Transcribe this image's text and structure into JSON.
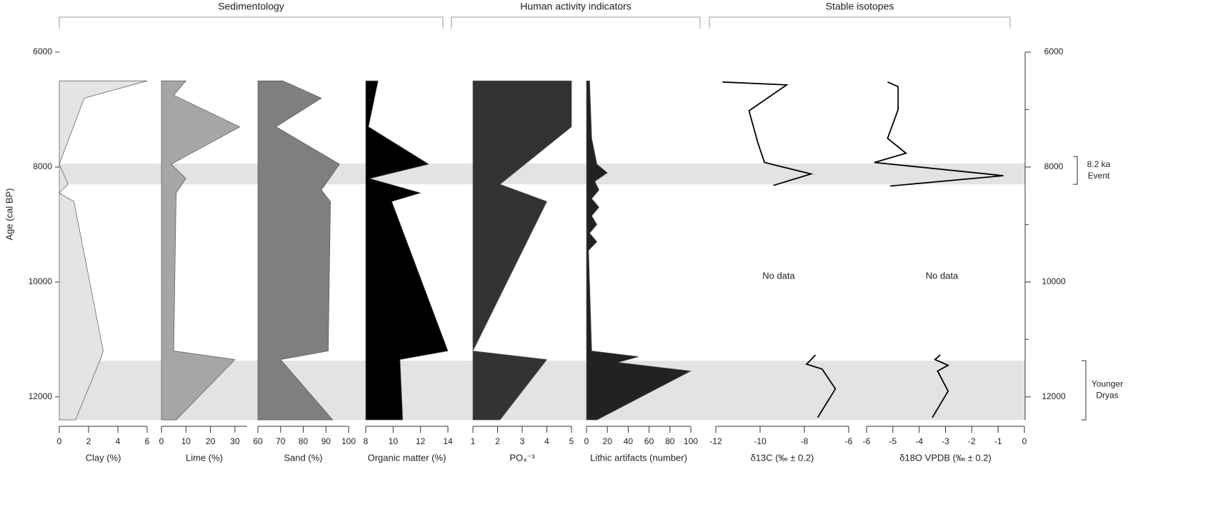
{
  "groups": [
    "Sedimentology",
    "Human activity indicators",
    "Stable isotopes"
  ],
  "age_axis": {
    "label": "Age (cal BP)",
    "ylim": [
      6000,
      12400
    ],
    "yticks": [
      6000,
      8000,
      10000,
      12000
    ],
    "minor": [
      7000,
      9000,
      11000
    ]
  },
  "bands": [
    {
      "lines": [
        "8.2 ka",
        "Event"
      ],
      "ylim": [
        7940,
        8300
      ]
    },
    {
      "lines": [
        "Younger",
        "Dryas"
      ],
      "ylim": [
        11370,
        12400
      ]
    }
  ],
  "chart_data": [
    {
      "type": "area",
      "xlabel": "Clay (%)",
      "xlim": [
        0,
        6
      ],
      "xticks": [
        0,
        2,
        4,
        6
      ],
      "color": "#e4e4e4",
      "y": [
        6500,
        6800,
        7950,
        8300,
        8450,
        8600,
        11200,
        11350,
        12400
      ],
      "values": [
        6,
        1.7,
        0,
        0.6,
        0,
        1.0,
        3.0,
        2.8,
        1.1
      ]
    },
    {
      "type": "area",
      "xlabel": "Lime (%)",
      "xlim": [
        0,
        35
      ],
      "xticks": [
        0,
        10,
        20,
        30
      ],
      "color": "#a6a6a6",
      "y": [
        6500,
        6750,
        7300,
        7950,
        8200,
        8450,
        11200,
        11350,
        12400
      ],
      "values": [
        10,
        5,
        32,
        4,
        10,
        6,
        5,
        30,
        6
      ]
    },
    {
      "type": "area",
      "xlabel": "Sand (%)",
      "xlim": [
        60,
        100
      ],
      "xticks": [
        60,
        70,
        80,
        90,
        100
      ],
      "color": "#7f7f7f",
      "y": [
        6500,
        6800,
        7300,
        7950,
        8400,
        8600,
        11200,
        11350,
        12400
      ],
      "values": [
        71,
        88,
        68,
        96,
        88,
        92,
        91,
        70,
        93
      ]
    },
    {
      "type": "area",
      "xlabel": "Organic matter (%)",
      "xlim": [
        8,
        14
      ],
      "xticks": [
        8,
        10,
        12,
        14
      ],
      "color": "#000000",
      "y": [
        6500,
        7300,
        7950,
        8200,
        8450,
        8600,
        11200,
        11350,
        12400
      ],
      "values": [
        8.9,
        8.2,
        12.6,
        8.3,
        12.0,
        9.9,
        14,
        10.5,
        10.7
      ]
    },
    {
      "type": "area",
      "xlabel": "PO₄⁻³",
      "xlim": [
        1,
        5
      ],
      "xticks": [
        1,
        2,
        3,
        4,
        5
      ],
      "color": "#333333",
      "y": [
        6500,
        7300,
        8300,
        8600,
        11200,
        11350,
        12400
      ],
      "values": [
        5,
        5,
        2.1,
        4.0,
        1,
        4.0,
        2.1
      ]
    },
    {
      "type": "area",
      "xlabel": "Lithic artifacts (number)",
      "xlim": [
        0,
        100
      ],
      "xticks": [
        0,
        20,
        40,
        60,
        80,
        100
      ],
      "color": "#222222",
      "y": [
        6500,
        7500,
        7950,
        8100,
        8250,
        8400,
        8550,
        8700,
        8850,
        9000,
        9150,
        9300,
        9450,
        11200,
        11300,
        11400,
        11550,
        12400
      ],
      "values": [
        3,
        5,
        10,
        20,
        8,
        12,
        5,
        12,
        5,
        10,
        3,
        10,
        2,
        5,
        50,
        30,
        100,
        10
      ]
    },
    {
      "type": "line",
      "xlabel": "δ13C (‰ ± 0.2)",
      "xlim": [
        -12,
        -6
      ],
      "xticks": [
        -12,
        -10,
        -8,
        -6
      ],
      "color": "#000000",
      "annotation": "No data",
      "y": [
        6520,
        6570,
        7020,
        7580,
        7920,
        8120,
        8320,
        null,
        11270,
        11430,
        11515,
        11860,
        12360
      ],
      "values": [
        -11.7,
        -8.8,
        -10.5,
        -10.1,
        -9.8,
        -7.7,
        -9.4,
        null,
        -7.5,
        -7.9,
        -7.2,
        -6.6,
        -7.4
      ]
    },
    {
      "type": "line",
      "xlabel": "δ18O VPDB (‰ ± 0.2)",
      "xlim": [
        -6,
        0
      ],
      "xticks": [
        -6,
        -5,
        -4,
        -3,
        -2,
        -1,
        0
      ],
      "color": "#000000",
      "annotation": "No data",
      "y": [
        6520,
        6600,
        7000,
        7500,
        7760,
        7920,
        8150,
        8330,
        null,
        11270,
        11350,
        11450,
        11550,
        11900,
        12360
      ],
      "values": [
        -5.2,
        -4.8,
        -4.8,
        -5.2,
        -4.5,
        -5.7,
        -0.8,
        -5.1,
        null,
        -3.2,
        -3.4,
        -2.9,
        -3.3,
        -2.9,
        -3.5
      ]
    }
  ]
}
